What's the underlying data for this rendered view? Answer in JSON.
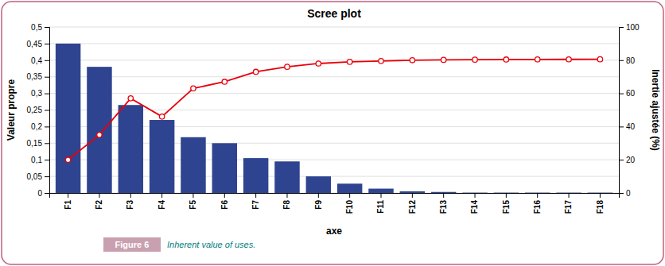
{
  "chart_data": {
    "type": "bar",
    "title": "Scree plot",
    "xlabel": "axe",
    "ylabel": "Valeur propre",
    "y2label": "Inertie ajustée (%)",
    "categories": [
      "F1",
      "F2",
      "F3",
      "F4",
      "F5",
      "F6",
      "F7",
      "F8",
      "F9",
      "F10",
      "F11",
      "F12",
      "F13",
      "F14",
      "F15",
      "F16",
      "F17",
      "F18"
    ],
    "series": [
      {
        "type": "bar",
        "color": "#2e4490",
        "values": [
          0.45,
          0.38,
          0.265,
          0.22,
          0.168,
          0.15,
          0.105,
          0.095,
          0.05,
          0.028,
          0.013,
          0.005,
          0.003,
          0.001,
          0.001,
          0.001,
          0.001,
          0.001
        ]
      },
      {
        "type": "line",
        "axis": "y2",
        "color": "#e8000a",
        "marker": "circle",
        "values": [
          20,
          35,
          57,
          46,
          63,
          67,
          73,
          76,
          78,
          79,
          79.5,
          80,
          80.2,
          80.3,
          80.4,
          80.45,
          80.5,
          80.55
        ]
      }
    ],
    "ylim": [
      0,
      0.5
    ],
    "yticks": [
      0,
      {
        "value": 0.05,
        "label": "0,05"
      },
      {
        "value": 0.1,
        "label": "0,1"
      },
      {
        "value": 0.15,
        "label": "0,15"
      },
      {
        "value": 0.2,
        "label": "0,2"
      },
      {
        "value": 0.25,
        "label": "0,25"
      },
      {
        "value": 0.3,
        "label": "0,3"
      },
      {
        "value": 0.35,
        "label": "0,35"
      },
      {
        "value": 0.4,
        "label": "0,4"
      },
      {
        "value": 0.45,
        "label": "0,45"
      },
      {
        "value": 0.5,
        "label": "0,5"
      }
    ],
    "y2lim": [
      0,
      100
    ],
    "y2ticks": [
      0,
      20,
      40,
      60,
      80,
      100
    ],
    "grid": true,
    "annotations": [
      "Figure 6",
      "Inherent value of uses."
    ]
  }
}
